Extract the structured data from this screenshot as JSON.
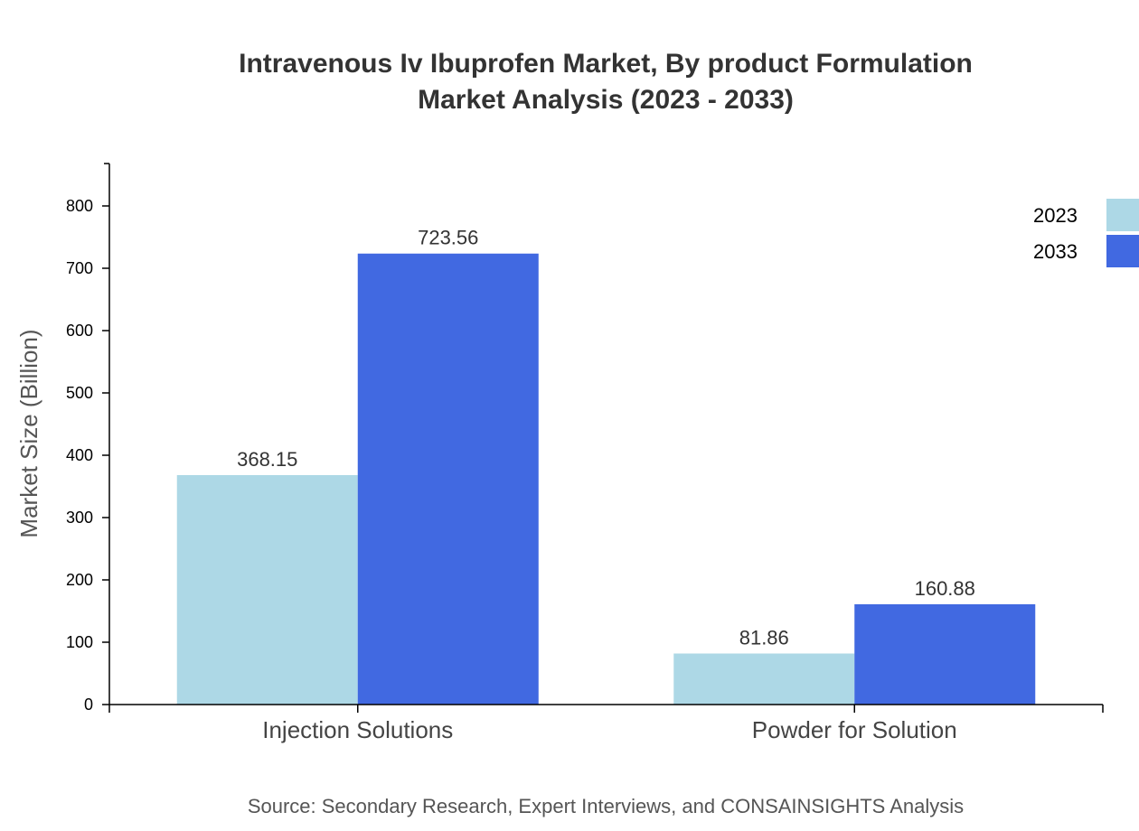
{
  "chart_data": {
    "type": "bar",
    "title": [
      "Intravenous Iv Ibuprofen Market, By product Formulation",
      "Market Analysis (2023 - 2033)"
    ],
    "xlabel": "",
    "ylabel": "Market Size (Billion)",
    "categories": [
      "Injection Solutions",
      "Powder for Solution"
    ],
    "series": [
      {
        "name": "2023",
        "values": [
          368.15,
          81.86
        ],
        "color": "#add8e6"
      },
      {
        "name": "2033",
        "values": [
          723.56,
          160.88
        ],
        "color": "#4169e1"
      }
    ],
    "yticks": [
      0,
      100,
      200,
      300,
      400,
      500,
      600,
      700,
      800
    ],
    "ylim": [
      0,
      868
    ],
    "grid": false,
    "legend": "top-right",
    "source": "Source: Secondary Research, Expert Interviews, and CONSAINSIGHTS Analysis"
  }
}
